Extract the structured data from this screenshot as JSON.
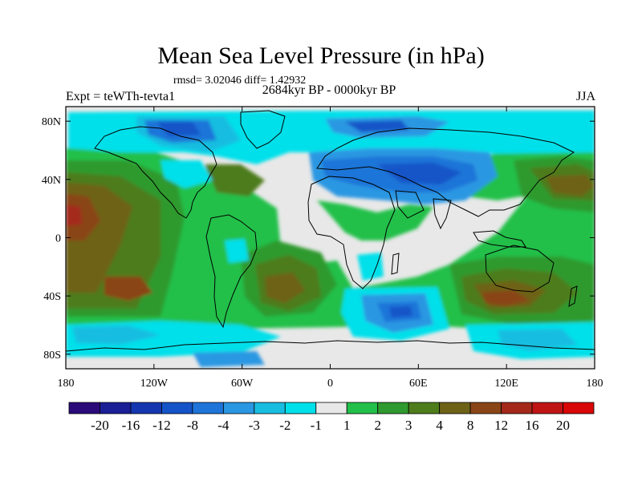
{
  "title": "Mean Sea Level Pressure (in hPa)",
  "stats": "rmsd= 3.02046 diff= 1.42932",
  "period": "2684kyr BP - 0000kyr BP",
  "experiment": "Expt = teWTh-tevta1",
  "season": "JJA",
  "map": {
    "lat_ticks": [
      "80N",
      "40N",
      "0",
      "40S",
      "80S"
    ],
    "lon_ticks": [
      "180",
      "120W",
      "60W",
      "0",
      "60E",
      "120E",
      "180"
    ],
    "lat_range": [
      -90,
      90
    ],
    "lon_range": [
      -180,
      180
    ]
  },
  "colorbar": {
    "labels": [
      "-20",
      "-16",
      "-12",
      "-8",
      "-4",
      "-3",
      "-2",
      "-1",
      "1",
      "2",
      "3",
      "4",
      "8",
      "12",
      "16",
      "20"
    ],
    "colors": [
      "#2b0a7a",
      "#1a1f96",
      "#1437b0",
      "#1454c8",
      "#1e74d8",
      "#2a97e2",
      "#19bde0",
      "#00e0ea",
      "#e8e8e8",
      "#22c04a",
      "#2f9a2f",
      "#4e7c1c",
      "#6e6217",
      "#8a4516",
      "#a4291a",
      "#c01414",
      "#d80808"
    ]
  },
  "palette": {
    "neutral": "#e8e8e8",
    "green": "#22c04a",
    "dkgreen": "#2f9a2f",
    "olive": "#4e7c1c",
    "brown": "#6e6217",
    "rbrown": "#8a4516",
    "red": "#a4291a",
    "cyan": "#00e0ea",
    "sky": "#19bde0",
    "lblue": "#2a97e2",
    "blue": "#1e74d8",
    "dblue": "#1454c8",
    "navy": "#1437b0"
  }
}
